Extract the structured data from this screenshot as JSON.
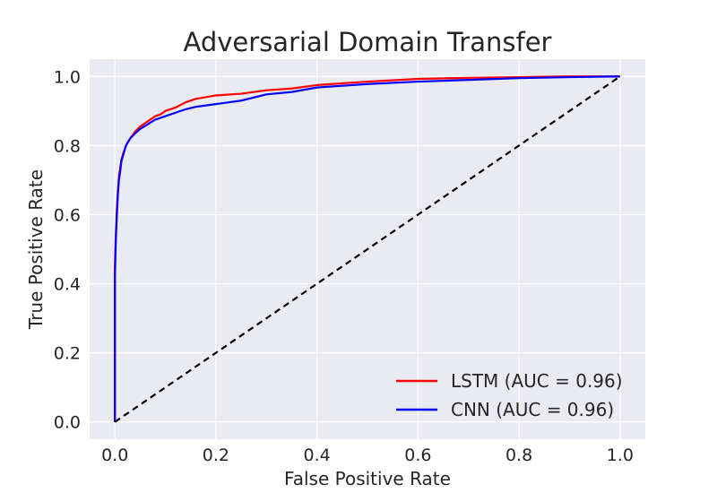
{
  "chart_data": {
    "type": "line",
    "title": "Adversarial Domain Transfer",
    "xlabel": "False Positive Rate",
    "ylabel": "True Positive Rate",
    "xlim": [
      -0.05,
      1.05
    ],
    "ylim": [
      -0.05,
      1.05
    ],
    "xticks": [
      0.0,
      0.2,
      0.4,
      0.6,
      0.8,
      1.0
    ],
    "xtick_labels": [
      "0.0",
      "0.2",
      "0.4",
      "0.6",
      "0.8",
      "1.0"
    ],
    "yticks": [
      0.0,
      0.2,
      0.4,
      0.6,
      0.8,
      1.0
    ],
    "ytick_labels": [
      "0.0",
      "0.2",
      "0.4",
      "0.6",
      "0.8",
      "1.0"
    ],
    "grid": true,
    "legend_position": "lower-right",
    "series": [
      {
        "name": "LSTM (AUC = 0.96)",
        "color": "#ff0000",
        "style": "solid",
        "x": [
          0.0,
          0.0,
          0.002,
          0.004,
          0.006,
          0.008,
          0.01,
          0.013,
          0.017,
          0.022,
          0.03,
          0.04,
          0.05,
          0.06,
          0.07,
          0.08,
          0.09,
          0.1,
          0.12,
          0.14,
          0.16,
          0.2,
          0.25,
          0.3,
          0.35,
          0.4,
          0.5,
          0.6,
          0.7,
          0.8,
          0.9,
          1.0
        ],
        "y": [
          0.0,
          0.45,
          0.55,
          0.62,
          0.67,
          0.71,
          0.73,
          0.76,
          0.78,
          0.8,
          0.82,
          0.84,
          0.855,
          0.865,
          0.875,
          0.885,
          0.89,
          0.9,
          0.91,
          0.925,
          0.935,
          0.945,
          0.95,
          0.96,
          0.965,
          0.975,
          0.985,
          0.993,
          0.996,
          0.998,
          1.0,
          1.0
        ]
      },
      {
        "name": "CNN (AUC = 0.96)",
        "color": "#0000ff",
        "style": "solid",
        "x": [
          0.0,
          0.0,
          0.002,
          0.004,
          0.006,
          0.008,
          0.01,
          0.013,
          0.017,
          0.022,
          0.03,
          0.04,
          0.05,
          0.06,
          0.07,
          0.08,
          0.09,
          0.1,
          0.12,
          0.14,
          0.16,
          0.2,
          0.25,
          0.3,
          0.35,
          0.4,
          0.5,
          0.6,
          0.7,
          0.8,
          0.9,
          1.0
        ],
        "y": [
          0.0,
          0.42,
          0.53,
          0.6,
          0.66,
          0.7,
          0.72,
          0.755,
          0.775,
          0.8,
          0.82,
          0.835,
          0.848,
          0.857,
          0.866,
          0.875,
          0.88,
          0.885,
          0.895,
          0.905,
          0.912,
          0.92,
          0.93,
          0.948,
          0.955,
          0.968,
          0.978,
          0.985,
          0.99,
          0.995,
          0.998,
          1.0
        ]
      },
      {
        "name": "",
        "color": "#000000",
        "style": "dashed",
        "x": [
          0.0,
          1.0
        ],
        "y": [
          0.0,
          1.0
        ]
      }
    ]
  }
}
